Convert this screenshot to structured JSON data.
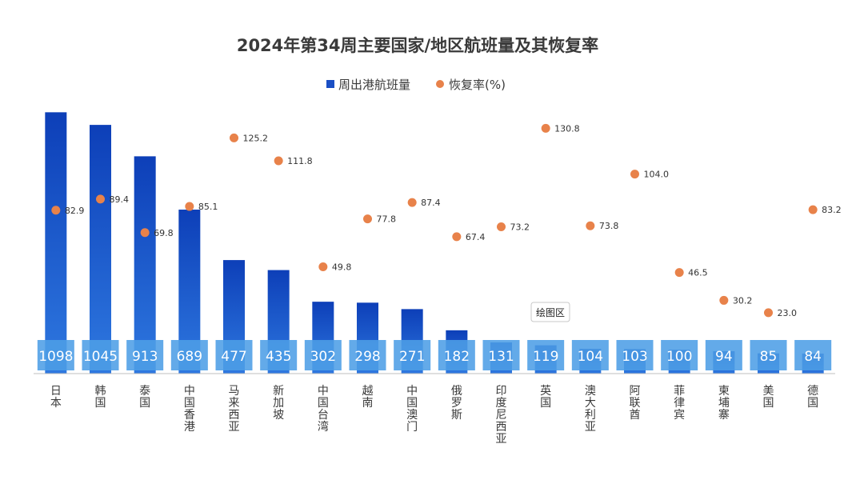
{
  "chart_data": {
    "type": "bar",
    "title": "2024年第34周主要国家/地区航班量及其恢复率",
    "categories": [
      "日本",
      "韩国",
      "泰国",
      "中国香港",
      "马来西亚",
      "新加坡",
      "中国台湾",
      "越南",
      "中国澳门",
      "俄罗斯",
      "印度尼西亚",
      "英国",
      "澳大利亚",
      "阿联酋",
      "菲律宾",
      "柬埔寨",
      "美国",
      "德国"
    ],
    "series": [
      {
        "name": "周出港航班量",
        "kind": "bar",
        "values": [
          1098,
          1045,
          913,
          689,
          477,
          435,
          302,
          298,
          271,
          182,
          131,
          119,
          104,
          103,
          100,
          94,
          85,
          84
        ]
      },
      {
        "name": "恢复率(%)",
        "kind": "scatter",
        "values": [
          "82.9",
          "89.4",
          "69.8",
          "85.1",
          "125.2",
          "111.8",
          "49.8",
          "77.8",
          "87.4",
          "67.4",
          "73.2",
          "130.8",
          "73.8",
          "104.0",
          "46.5",
          "30.2",
          "23.0",
          "83.2"
        ]
      }
    ],
    "bar_ylim": [
      0,
      1200
    ],
    "rate_ylim": [
      0,
      145
    ],
    "tooltip": "绘图区",
    "colors": {
      "bar_top": "#0d3fb8",
      "bar_bottom": "#2e78e0",
      "label_box": "#4d9ee6",
      "dot": "#e8824a",
      "axis": "#bfbfbf"
    }
  }
}
